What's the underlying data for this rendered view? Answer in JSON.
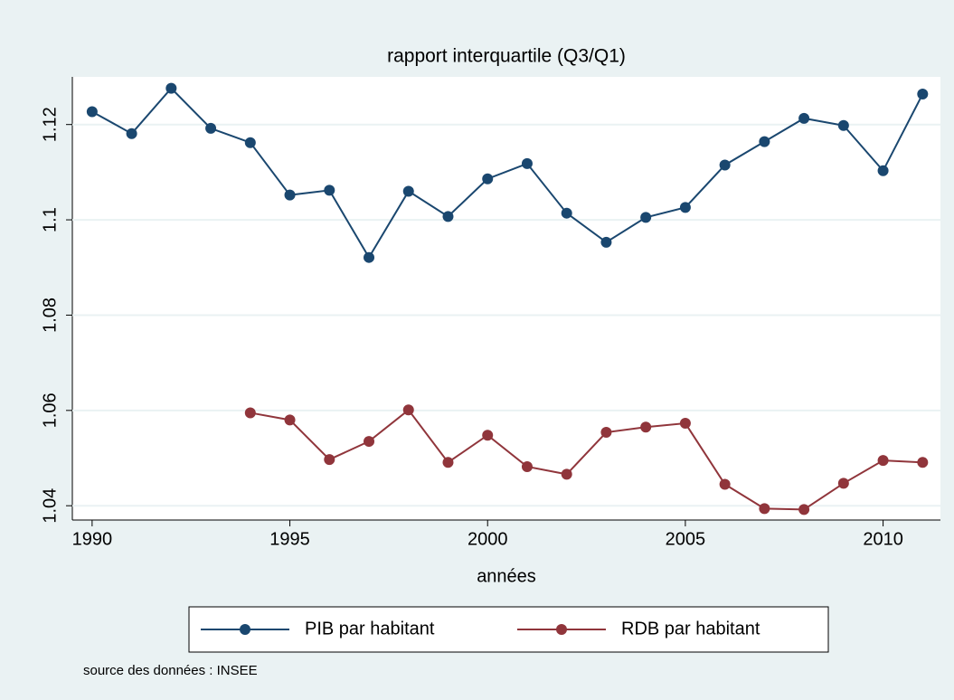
{
  "chart_data": {
    "type": "line",
    "title": "rapport interquartile (Q3/Q1)",
    "x_label": "années",
    "note": "source des données : INSEE",
    "x": [
      1990,
      1991,
      1992,
      1993,
      1994,
      1995,
      1996,
      1997,
      1998,
      1999,
      2000,
      2001,
      2002,
      2003,
      2004,
      2005,
      2006,
      2007,
      2008,
      2009,
      2010,
      2011
    ],
    "series": [
      {
        "name": "PIB par habitant",
        "color": "#1a476f",
        "values": [
          1.1227,
          1.1181,
          1.1276,
          1.1192,
          1.1162,
          1.1052,
          1.1062,
          1.0921,
          1.106,
          1.1007,
          1.1086,
          1.1118,
          1.1014,
          1.0953,
          1.1005,
          1.1026,
          1.1115,
          1.1164,
          1.1213,
          1.1198,
          1.1103,
          1.1264
        ]
      },
      {
        "name": "RDB par habitant",
        "color": "#90353b",
        "values": [
          null,
          null,
          null,
          null,
          1.0595,
          1.058,
          1.0497,
          1.0535,
          1.0601,
          1.0491,
          1.0548,
          1.0482,
          1.0466,
          1.0554,
          1.0565,
          1.0573,
          1.0445,
          1.0394,
          1.0392,
          1.0447,
          1.0495,
          1.0491
        ]
      }
    ],
    "xlim": [
      1989.5,
      2011.45
    ],
    "xticks": [
      1990,
      1995,
      2000,
      2005,
      2010
    ],
    "ylim": [
      1.037,
      1.13
    ],
    "yticks": [
      1.04,
      1.06,
      1.08,
      1.1,
      1.12
    ],
    "grid": true,
    "legend": "bottom"
  }
}
